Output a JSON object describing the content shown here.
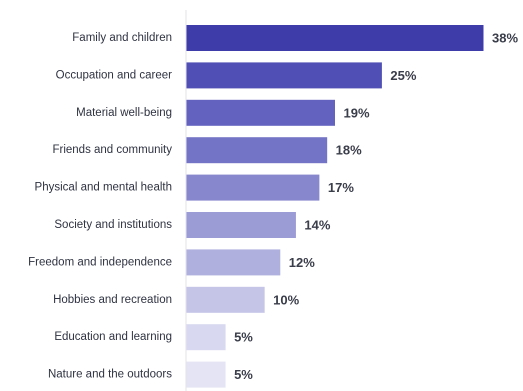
{
  "chart_data": {
    "type": "bar",
    "orientation": "horizontal",
    "categories": [
      "Family and children",
      "Occupation and career",
      "Material well-being",
      "Friends and community",
      "Physical and mental health",
      "Society and institutions",
      "Freedom and independence",
      "Hobbies and recreation",
      "Education and learning",
      "Nature and the outdoors"
    ],
    "values": [
      38,
      25,
      19,
      18,
      17,
      14,
      12,
      10,
      5,
      5
    ],
    "value_labels": [
      "38%",
      "25%",
      "19%",
      "18%",
      "17%",
      "14%",
      "12%",
      "10%",
      "5%",
      "5%"
    ],
    "bar_colors": [
      "#3d3ca8",
      "#4f4fb5",
      "#6363bf",
      "#7474c6",
      "#8787ce",
      "#9b9bd6",
      "#b0b0df",
      "#c5c5e8",
      "#d8d8f0",
      "#e4e4f4"
    ],
    "axis_line_color": "#e3e3ea",
    "title": "",
    "xlabel": "",
    "ylabel": "",
    "xlim": [
      0,
      38
    ],
    "grid": false,
    "legend": "none"
  }
}
